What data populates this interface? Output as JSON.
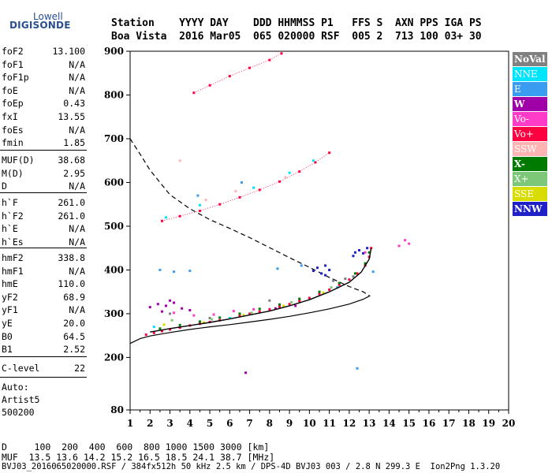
{
  "logo": {
    "top": "Lowell",
    "bottom": "DIGISONDE"
  },
  "header": {
    "labels": "Station    YYYY DAY    DDD HHMMSS P1   FFS S  AXN PPS IGA PS",
    "values": "Boa Vista  2016 Mar05  065 020000 RSF  005 2  713 100 03+ 30"
  },
  "params": {
    "group1": [
      {
        "name": "foF2",
        "value": "13.100"
      },
      {
        "name": "foF1",
        "value": "N/A"
      },
      {
        "name": "foF1p",
        "value": "N/A"
      },
      {
        "name": "foE",
        "value": "N/A"
      },
      {
        "name": "foEp",
        "value": "0.43"
      },
      {
        "name": "fxI",
        "value": "13.55"
      },
      {
        "name": "foEs",
        "value": "N/A"
      },
      {
        "name": "fmin",
        "value": "1.85"
      }
    ],
    "group2": [
      {
        "name": "MUF(D)",
        "value": "38.68"
      },
      {
        "name": "M(D)",
        "value": "2.95"
      },
      {
        "name": "D",
        "value": "N/A"
      }
    ],
    "group3": [
      {
        "name": "h`F",
        "value": "261.0"
      },
      {
        "name": "h`F2",
        "value": "261.0"
      },
      {
        "name": "h`E",
        "value": "N/A"
      },
      {
        "name": "h`Es",
        "value": "N/A"
      }
    ],
    "group4": [
      {
        "name": "hmF2",
        "value": "338.8"
      },
      {
        "name": "hmF1",
        "value": "N/A"
      },
      {
        "name": "hmE",
        "value": "110.0"
      },
      {
        "name": "yF2",
        "value": "68.9"
      },
      {
        "name": "yF1",
        "value": "N/A"
      },
      {
        "name": "yE",
        "value": "20.0"
      },
      {
        "name": "B0",
        "value": "64.5"
      },
      {
        "name": "B1",
        "value": "2.52"
      }
    ],
    "group5": [
      {
        "name": "C-level",
        "value": "22"
      }
    ],
    "auto": [
      "Auto:",
      "Artist5",
      "500200"
    ]
  },
  "legend": [
    {
      "label": "NoVal",
      "bg": "#808080",
      "fg": "#ffffff",
      "bold": true
    },
    {
      "label": "NNE",
      "bg": "#00e5ff",
      "fg": "#ffffff"
    },
    {
      "label": "E",
      "bg": "#3a9cf0",
      "fg": "#ffffff"
    },
    {
      "label": "W",
      "bg": "#a000a8",
      "fg": "#ffffff",
      "bold": true
    },
    {
      "label": "Vo-",
      "bg": "#ff3cc8",
      "fg": "#ffffff"
    },
    {
      "label": "Vo+",
      "bg": "#ff0040",
      "fg": "#ffffff"
    },
    {
      "label": "SSW",
      "bg": "#ffb4b4",
      "fg": "#ffffff"
    },
    {
      "label": "X-",
      "bg": "#007a00",
      "fg": "#ffffff",
      "bold": true
    },
    {
      "label": "X+",
      "bg": "#7cc878",
      "fg": "#ffffff"
    },
    {
      "label": "SSE",
      "bg": "#d8dc00",
      "fg": "#ffffff"
    },
    {
      "label": "NNW",
      "bg": "#2020c8",
      "fg": "#ffffff",
      "bold": true
    }
  ],
  "footer": {
    "line1": "D     100  200  400  600  800 1000 1500 3000 [km]",
    "line2": "MUF  13.5 13.6 14.2 15.2 16.5 18.5 24.1 38.7 [MHz]",
    "line3": "BVJ03_2016065020000.RSF / 384fx512h 50 kHz 2.5 km / DPS-4D BVJ03 003 / 2.8 N 299.3 E  Ion2Png 1.3.20"
  },
  "chart_data": {
    "type": "scatter",
    "title": "",
    "xlabel": "",
    "ylabel": "",
    "xlim": [
      1,
      20
    ],
    "ylim": [
      80,
      900
    ],
    "x_ticks": [
      1,
      2,
      3,
      4,
      5,
      6,
      7,
      8,
      9,
      10,
      11,
      12,
      13,
      14,
      15,
      16,
      17,
      18,
      19,
      20
    ],
    "y_ticks": [
      80,
      200,
      300,
      400,
      500,
      600,
      700,
      800,
      900
    ],
    "series": [
      {
        "name": "Vo+",
        "color": "#ff0040",
        "points": [
          [
            1.8,
            252
          ],
          [
            2.2,
            256
          ],
          [
            2.6,
            260
          ],
          [
            3.0,
            264
          ],
          [
            3.5,
            268
          ],
          [
            4.0,
            273
          ],
          [
            4.5,
            277
          ],
          [
            5.0,
            281
          ],
          [
            5.5,
            285
          ],
          [
            6.0,
            290
          ],
          [
            6.5,
            295
          ],
          [
            7.0,
            300
          ],
          [
            7.5,
            305
          ],
          [
            8.0,
            310
          ],
          [
            8.5,
            316
          ],
          [
            9.0,
            322
          ],
          [
            9.5,
            329
          ],
          [
            10.0,
            336
          ],
          [
            10.5,
            345
          ],
          [
            11.0,
            355
          ],
          [
            11.5,
            366
          ],
          [
            12.0,
            378
          ],
          [
            12.4,
            392
          ],
          [
            12.8,
            410
          ],
          [
            13.0,
            430
          ],
          [
            13.1,
            450
          ]
        ]
      },
      {
        "name": "X-",
        "color": "#007a00",
        "points": [
          [
            2.5,
            266
          ],
          [
            3.5,
            274
          ],
          [
            4.5,
            282
          ],
          [
            5.5,
            291
          ],
          [
            6.5,
            300
          ],
          [
            7.5,
            311
          ],
          [
            8.5,
            321
          ],
          [
            9.5,
            334
          ],
          [
            10.5,
            350
          ],
          [
            11.5,
            370
          ],
          [
            12.3,
            392
          ],
          [
            12.8,
            415
          ],
          [
            13.0,
            440
          ]
        ]
      },
      {
        "name": "W",
        "color": "#a000a8",
        "points": [
          [
            2.0,
            315
          ],
          [
            2.4,
            322
          ],
          [
            2.8,
            318
          ],
          [
            3.2,
            325
          ],
          [
            3.6,
            312
          ],
          [
            4.0,
            308
          ],
          [
            2.6,
            305
          ],
          [
            3.0,
            330
          ],
          [
            6.8,
            165
          ],
          [
            8.3,
            312
          ],
          [
            9.3,
            318
          ]
        ]
      },
      {
        "name": "Vo-",
        "color": "#ff3cc8",
        "points": [
          [
            3.2,
            302
          ],
          [
            4.2,
            296
          ],
          [
            5.2,
            298
          ],
          [
            6.2,
            306
          ],
          [
            7.2,
            310
          ],
          [
            14.5,
            455
          ],
          [
            14.8,
            468
          ],
          [
            15.0,
            460
          ],
          [
            12.8,
            440
          ]
        ]
      },
      {
        "name": "NNW",
        "color": "#2020c8",
        "points": [
          [
            10.2,
            398
          ],
          [
            10.4,
            405
          ],
          [
            10.6,
            392
          ],
          [
            10.8,
            410
          ],
          [
            11.0,
            400
          ],
          [
            12.3,
            440
          ],
          [
            12.5,
            445
          ],
          [
            12.7,
            438
          ],
          [
            12.9,
            450
          ],
          [
            10.8,
            388
          ],
          [
            12.2,
            432
          ]
        ]
      },
      {
        "name": "E",
        "color": "#3a9cf0",
        "points": [
          [
            2.5,
            400
          ],
          [
            3.2,
            396
          ],
          [
            4.0,
            398
          ],
          [
            8.4,
            403
          ],
          [
            9.6,
            410
          ],
          [
            11.4,
            360
          ],
          [
            12.4,
            175
          ],
          [
            13.2,
            396
          ],
          [
            4.4,
            570
          ],
          [
            6.6,
            600
          ]
        ]
      },
      {
        "name": "NNE",
        "color": "#00e5ff",
        "points": [
          [
            2.8,
            520
          ],
          [
            4.5,
            548
          ],
          [
            7.2,
            588
          ],
          [
            9.0,
            622
          ],
          [
            10.2,
            650
          ],
          [
            2.2,
            270
          ],
          [
            6.0,
            290
          ]
        ]
      },
      {
        "name": "NoVal",
        "color": "#808080",
        "points": [
          [
            11.2,
            375
          ],
          [
            11.8,
            380
          ],
          [
            12.2,
            385
          ],
          [
            3.0,
            300
          ],
          [
            5.0,
            290
          ],
          [
            8.0,
            330
          ]
        ]
      },
      {
        "name": "SSW",
        "color": "#ffb4b4",
        "points": [
          [
            3.5,
            650
          ],
          [
            4.8,
            560
          ],
          [
            6.3,
            580
          ],
          [
            8.8,
            612
          ]
        ]
      },
      {
        "name": "X+",
        "color": "#7cc878",
        "points": [
          [
            3.1,
            285
          ],
          [
            5.1,
            287
          ],
          [
            7.1,
            302
          ],
          [
            9.1,
            326
          ],
          [
            11.1,
            360
          ]
        ]
      },
      {
        "name": "SSE",
        "color": "#d8dc00",
        "points": [
          [
            2.7,
            275
          ],
          [
            4.7,
            280
          ],
          [
            6.7,
            297
          ],
          [
            8.7,
            318
          ],
          [
            10.7,
            348
          ]
        ]
      }
    ],
    "echo_traces": [
      {
        "name": "Vo+",
        "color": "#ff0040",
        "points": [
          [
            2.6,
            512
          ],
          [
            3.5,
            523
          ],
          [
            4.5,
            535
          ],
          [
            5.5,
            550
          ],
          [
            6.5,
            566
          ],
          [
            7.5,
            583
          ],
          [
            8.5,
            602
          ],
          [
            9.5,
            625
          ],
          [
            10.3,
            646
          ],
          [
            11.0,
            668
          ]
        ]
      },
      {
        "name": "Vo+",
        "color": "#ff0040",
        "points": [
          [
            4.2,
            805
          ],
          [
            5.0,
            822
          ],
          [
            6.0,
            843
          ],
          [
            7.0,
            862
          ],
          [
            8.0,
            880
          ],
          [
            8.6,
            895
          ]
        ]
      }
    ],
    "profile_line": {
      "color": "#000000",
      "points": [
        [
          1.0,
          232
        ],
        [
          1.5,
          243
        ],
        [
          2.0,
          249
        ],
        [
          3.0,
          257
        ],
        [
          4.0,
          264
        ],
        [
          5.0,
          270
        ],
        [
          6.0,
          275
        ],
        [
          7.0,
          281
        ],
        [
          8.0,
          287
        ],
        [
          9.0,
          294
        ],
        [
          10.0,
          302
        ],
        [
          11.0,
          311
        ],
        [
          12.0,
          322
        ],
        [
          12.7,
          333
        ],
        [
          13.0,
          340
        ]
      ]
    },
    "trace_line": {
      "color": "#000000",
      "points": [
        [
          2.0,
          258
        ],
        [
          3.0,
          266
        ],
        [
          4.0,
          273
        ],
        [
          5.0,
          280
        ],
        [
          6.0,
          288
        ],
        [
          7.0,
          297
        ],
        [
          8.0,
          306
        ],
        [
          9.0,
          318
        ],
        [
          10.0,
          332
        ],
        [
          11.0,
          350
        ],
        [
          12.0,
          372
        ],
        [
          12.6,
          395
        ],
        [
          13.0,
          425
        ],
        [
          13.1,
          450
        ]
      ]
    },
    "dashed_line": {
      "color": "#000000",
      "points": [
        [
          1.0,
          700
        ],
        [
          1.5,
          665
        ],
        [
          2.0,
          628
        ],
        [
          3.0,
          572
        ],
        [
          4.0,
          540
        ],
        [
          5.0,
          515
        ],
        [
          6.0,
          495
        ],
        [
          7.0,
          474
        ],
        [
          8.0,
          451
        ],
        [
          9.0,
          428
        ],
        [
          10.0,
          406
        ],
        [
          11.0,
          383
        ],
        [
          12.0,
          362
        ],
        [
          12.7,
          350
        ],
        [
          13.05,
          340
        ]
      ]
    }
  }
}
